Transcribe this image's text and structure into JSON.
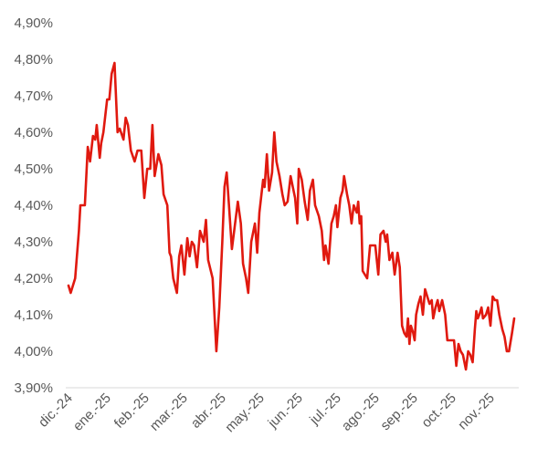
{
  "chart_data": {
    "type": "line",
    "title": "",
    "xlabel": "",
    "ylabel": "",
    "ylim": [
      3.9,
      4.9
    ],
    "y_ticks": [
      "3,90%",
      "4,00%",
      "4,10%",
      "4,20%",
      "4,30%",
      "4,40%",
      "4,50%",
      "4,60%",
      "4,70%",
      "4,80%",
      "4,90%"
    ],
    "x_ticks": [
      "dic.-24",
      "ene.-25",
      "feb.-25",
      "mar.-25",
      "abr.-25",
      "may.-25",
      "jun.-25",
      "jul.-25",
      "ago.-25",
      "sep.-25",
      "oct.-25",
      "nov.-25"
    ],
    "grid": false,
    "legend": "none",
    "line_color": "#E0190F",
    "series": [
      {
        "points": [
          [
            0.0,
            4.18
          ],
          [
            0.03,
            4.16
          ],
          [
            0.09,
            4.2
          ],
          [
            0.14,
            4.33
          ],
          [
            0.16,
            4.4
          ],
          [
            0.22,
            4.4
          ],
          [
            0.26,
            4.56
          ],
          [
            0.29,
            4.52
          ],
          [
            0.33,
            4.59
          ],
          [
            0.36,
            4.58
          ],
          [
            0.38,
            4.62
          ],
          [
            0.42,
            4.53
          ],
          [
            0.44,
            4.57
          ],
          [
            0.47,
            4.6
          ],
          [
            0.52,
            4.69
          ],
          [
            0.55,
            4.69
          ],
          [
            0.58,
            4.76
          ],
          [
            0.62,
            4.79
          ],
          [
            0.66,
            4.6
          ],
          [
            0.69,
            4.61
          ],
          [
            0.74,
            4.58
          ],
          [
            0.77,
            4.64
          ],
          [
            0.8,
            4.62
          ],
          [
            0.84,
            4.55
          ],
          [
            0.89,
            4.52
          ],
          [
            0.93,
            4.55
          ],
          [
            0.98,
            4.55
          ],
          [
            1.02,
            4.42
          ],
          [
            1.06,
            4.5
          ],
          [
            1.1,
            4.5
          ],
          [
            1.13,
            4.62
          ],
          [
            1.16,
            4.48
          ],
          [
            1.21,
            4.54
          ],
          [
            1.25,
            4.51
          ],
          [
            1.28,
            4.43
          ],
          [
            1.33,
            4.4
          ],
          [
            1.36,
            4.27
          ],
          [
            1.38,
            4.26
          ],
          [
            1.41,
            4.2
          ],
          [
            1.46,
            4.16
          ],
          [
            1.49,
            4.26
          ],
          [
            1.52,
            4.29
          ],
          [
            1.56,
            4.21
          ],
          [
            1.6,
            4.31
          ],
          [
            1.63,
            4.26
          ],
          [
            1.66,
            4.3
          ],
          [
            1.69,
            4.29
          ],
          [
            1.73,
            4.23
          ],
          [
            1.77,
            4.33
          ],
          [
            1.82,
            4.3
          ],
          [
            1.85,
            4.36
          ],
          [
            1.88,
            4.25
          ],
          [
            1.94,
            4.2
          ],
          [
            1.99,
            4.0
          ],
          [
            2.03,
            4.12
          ],
          [
            2.07,
            4.3
          ],
          [
            2.1,
            4.45
          ],
          [
            2.13,
            4.49
          ],
          [
            2.16,
            4.4
          ],
          [
            2.2,
            4.28
          ],
          [
            2.23,
            4.33
          ],
          [
            2.28,
            4.41
          ],
          [
            2.32,
            4.35
          ],
          [
            2.35,
            4.24
          ],
          [
            2.39,
            4.2
          ],
          [
            2.42,
            4.16
          ],
          [
            2.46,
            4.3
          ],
          [
            2.51,
            4.35
          ],
          [
            2.54,
            4.27
          ],
          [
            2.57,
            4.38
          ],
          [
            2.62,
            4.47
          ],
          [
            2.64,
            4.45
          ],
          [
            2.67,
            4.54
          ],
          [
            2.7,
            4.44
          ],
          [
            2.74,
            4.49
          ],
          [
            2.77,
            4.6
          ],
          [
            2.8,
            4.52
          ],
          [
            2.84,
            4.48
          ],
          [
            2.88,
            4.43
          ],
          [
            2.91,
            4.4
          ],
          [
            2.95,
            4.41
          ],
          [
            2.99,
            4.48
          ],
          [
            3.02,
            4.45
          ],
          [
            3.05,
            4.42
          ],
          [
            3.08,
            4.35
          ],
          [
            3.1,
            4.5
          ],
          [
            3.14,
            4.47
          ],
          [
            3.18,
            4.41
          ],
          [
            3.22,
            4.36
          ],
          [
            3.25,
            4.44
          ],
          [
            3.29,
            4.47
          ],
          [
            3.32,
            4.4
          ],
          [
            3.37,
            4.37
          ],
          [
            3.41,
            4.33
          ],
          [
            3.44,
            4.25
          ],
          [
            3.46,
            4.29
          ],
          [
            3.5,
            4.24
          ],
          [
            3.54,
            4.35
          ],
          [
            3.57,
            4.37
          ],
          [
            3.6,
            4.4
          ],
          [
            3.62,
            4.34
          ],
          [
            3.66,
            4.42
          ],
          [
            3.69,
            4.44
          ],
          [
            3.71,
            4.48
          ],
          [
            3.75,
            4.43
          ],
          [
            3.78,
            4.4
          ],
          [
            3.81,
            4.35
          ],
          [
            3.84,
            4.4
          ],
          [
            3.88,
            4.38
          ],
          [
            3.9,
            4.41
          ],
          [
            3.92,
            4.35
          ],
          [
            3.94,
            4.37
          ],
          [
            3.96,
            4.22
          ],
          [
            3.99,
            4.21
          ],
          [
            4.02,
            4.2
          ],
          [
            4.06,
            4.29
          ],
          [
            4.09,
            4.29
          ],
          [
            4.13,
            4.29
          ],
          [
            4.17,
            4.21
          ],
          [
            4.2,
            4.32
          ],
          [
            4.24,
            4.33
          ],
          [
            4.27,
            4.3
          ],
          [
            4.29,
            4.32
          ],
          [
            4.32,
            4.25
          ],
          [
            4.36,
            4.27
          ],
          [
            4.39,
            4.21
          ],
          [
            4.43,
            4.27
          ],
          [
            4.46,
            4.23
          ],
          [
            4.49,
            4.07
          ],
          [
            4.52,
            4.05
          ],
          [
            4.55,
            4.04
          ],
          [
            4.57,
            4.09
          ],
          [
            4.59,
            4.02
          ],
          [
            4.61,
            4.07
          ],
          [
            4.64,
            4.05
          ],
          [
            4.66,
            4.03
          ],
          [
            4.68,
            4.1
          ],
          [
            4.71,
            4.13
          ],
          [
            4.74,
            4.15
          ],
          [
            4.77,
            4.1
          ],
          [
            4.8,
            4.17
          ],
          [
            4.83,
            4.15
          ],
          [
            4.86,
            4.13
          ],
          [
            4.89,
            4.14
          ],
          [
            4.91,
            4.09
          ],
          [
            4.94,
            4.12
          ],
          [
            4.97,
            4.14
          ],
          [
            4.99,
            4.11
          ],
          [
            5.03,
            4.14
          ],
          [
            5.07,
            4.1
          ],
          [
            5.1,
            4.03
          ],
          [
            5.14,
            4.03
          ],
          [
            5.19,
            4.03
          ],
          [
            5.22,
            3.96
          ],
          [
            5.25,
            4.02
          ],
          [
            5.28,
            4.0
          ],
          [
            5.31,
            3.99
          ],
          [
            5.35,
            3.95
          ],
          [
            5.38,
            4.0
          ],
          [
            5.41,
            3.99
          ],
          [
            5.44,
            3.97
          ],
          [
            5.47,
            4.06
          ],
          [
            5.49,
            4.11
          ],
          [
            5.51,
            4.09
          ],
          [
            5.53,
            4.1
          ],
          [
            5.56,
            4.12
          ],
          [
            5.58,
            4.09
          ],
          [
            5.62,
            4.1
          ],
          [
            5.65,
            4.12
          ],
          [
            5.68,
            4.07
          ],
          [
            5.71,
            4.15
          ],
          [
            5.74,
            4.14
          ],
          [
            5.77,
            4.14
          ],
          [
            5.8,
            4.1
          ],
          [
            5.84,
            4.06
          ],
          [
            5.87,
            4.04
          ],
          [
            5.9,
            4.0
          ],
          [
            5.93,
            4.0
          ],
          [
            5.97,
            4.05
          ],
          [
            6.0,
            4.09
          ]
        ]
      }
    ]
  }
}
